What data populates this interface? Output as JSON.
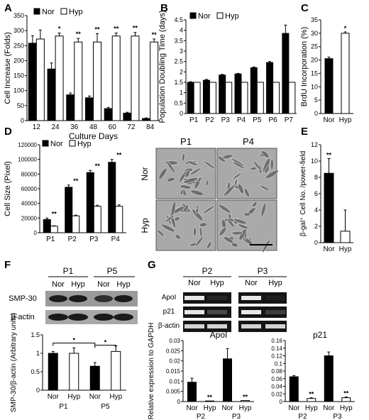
{
  "chart_data": [
    {
      "panel": "A",
      "type": "bar",
      "categories": [
        "12",
        "24",
        "36",
        "48",
        "60",
        "72",
        "84"
      ],
      "series": [
        {
          "name": "Nor",
          "color": "#000000",
          "values": [
            258,
            172,
            86,
            76,
            40,
            25,
            7
          ],
          "errors": [
            25,
            20,
            6,
            6,
            4,
            3,
            2
          ]
        },
        {
          "name": "Hyp",
          "color": "#ffffff",
          "values": [
            272,
            282,
            262,
            262,
            282,
            282,
            262
          ],
          "errors": [
            30,
            10,
            12,
            28,
            10,
            12,
            10
          ]
        }
      ],
      "sig_labels": [
        "",
        "*",
        "**",
        "**",
        "**",
        "**",
        "**"
      ],
      "ylabel": "Cell Increase (Folds)",
      "xlabel": "Culture Days",
      "ylim": [
        0,
        350
      ],
      "yticks": [
        "0",
        "50",
        "100",
        "150",
        "200",
        "250",
        "300",
        "350"
      ],
      "legend": "top-left"
    },
    {
      "panel": "B",
      "type": "bar",
      "categories": [
        "P1",
        "P2",
        "P3",
        "P4",
        "P5",
        "P6",
        "P7"
      ],
      "series": [
        {
          "name": "Nor",
          "color": "#000000",
          "values": [
            1.5,
            1.6,
            1.85,
            1.9,
            2.2,
            2.45,
            3.85
          ],
          "errors": [
            0.03,
            0.04,
            0.03,
            0.03,
            0.04,
            0.05,
            0.4
          ]
        },
        {
          "name": "Hyp",
          "color": "#ffffff",
          "values": [
            1.5,
            1.5,
            1.5,
            1.5,
            1.5,
            1.5,
            1.5
          ],
          "errors": [
            0,
            0,
            0,
            0,
            0,
            0,
            0
          ]
        }
      ],
      "ylabel": "Population Doubling Time (days)",
      "ylim": [
        0,
        4.5
      ],
      "yticks": [
        "0",
        "0.5",
        "1",
        "1.5",
        "2",
        "2.5",
        "3",
        "3.5",
        "4",
        "4.5"
      ],
      "legend": "top-left"
    },
    {
      "panel": "C",
      "type": "bar",
      "categories": [
        "Nor",
        "Hyp"
      ],
      "values": [
        20.5,
        30
      ],
      "colors": [
        "#000000",
        "#ffffff"
      ],
      "errors": [
        0.6,
        0.5
      ],
      "sig_labels": [
        "",
        "*"
      ],
      "ylabel": "BrdU Incorporation (%)",
      "ylim": [
        0,
        35
      ],
      "yticks": [
        "0",
        "5",
        "10",
        "15",
        "20",
        "25",
        "30",
        "35"
      ]
    },
    {
      "panel": "D",
      "type": "bar",
      "categories": [
        "P1",
        "P2",
        "P3",
        "P4"
      ],
      "series": [
        {
          "name": "Nor",
          "color": "#000000",
          "values": [
            18000,
            62000,
            82000,
            96000
          ],
          "errors": [
            2000,
            3000,
            3000,
            4000
          ]
        },
        {
          "name": "Hyp",
          "color": "#ffffff",
          "values": [
            9000,
            23000,
            36000,
            36000
          ],
          "errors": [
            500,
            1000,
            1500,
            2000
          ]
        }
      ],
      "sig_labels": [
        "**",
        "**",
        "**",
        "**"
      ],
      "ylabel": "Cell Size (Pixel)",
      "ylim": [
        0,
        120000
      ],
      "yticks": [
        "0",
        "20000",
        "40000",
        "60000",
        "80000",
        "100000",
        "120000"
      ],
      "legend": "top-left"
    },
    {
      "panel": "E",
      "type": "bar",
      "categories": [
        "Nor",
        "Hyp"
      ],
      "values": [
        8.5,
        1.4
      ],
      "colors": [
        "#000000",
        "#ffffff"
      ],
      "errors": [
        1.8,
        2.6
      ],
      "sig_labels": [
        "**",
        ""
      ],
      "ylabel": "β-gal⁺ Cell No. /power-field",
      "ylim": [
        0,
        12
      ],
      "yticks": [
        "0",
        "2",
        "4",
        "6",
        "8",
        "10",
        "12"
      ]
    },
    {
      "panel": "F",
      "type": "bar",
      "categories": [
        "Nor",
        "Hyp",
        "Nor",
        "Hyp"
      ],
      "groups": [
        "P1",
        "P5"
      ],
      "values": [
        1.0,
        1.0,
        0.65,
        1.05
      ],
      "colors": [
        "#000000",
        "#ffffff",
        "#000000",
        "#ffffff"
      ],
      "errors": [
        0.05,
        0.15,
        0.1,
        0.15
      ],
      "brackets": [
        "*",
        "*"
      ],
      "ylabel": "SMP-30/β-actin (Arbitrary units)",
      "ylim": [
        0,
        1.5
      ],
      "yticks": [
        "0",
        "0.5",
        "1",
        "1.5"
      ]
    },
    {
      "panel": "G-ApoI",
      "type": "bar",
      "title": "ApoI",
      "categories": [
        "Nor",
        "Hyp",
        "Nor",
        "Hyp"
      ],
      "groups": [
        "P2",
        "P3"
      ],
      "values": [
        0.0095,
        0.0003,
        0.021,
        0.0005
      ],
      "colors": [
        "#000000",
        "#ffffff",
        "#000000",
        "#ffffff"
      ],
      "errors": [
        0.002,
        0,
        0.005,
        0
      ],
      "sig_labels": [
        "",
        "**",
        "",
        "**"
      ],
      "ylabel": "Relative expression to GAPDH",
      "ylim": [
        0,
        0.03
      ],
      "yticks": [
        "0",
        "0.005",
        "0.01",
        "0.015",
        "0.02",
        "0.025",
        "0.03"
      ]
    },
    {
      "panel": "G-p21",
      "type": "bar",
      "title": "p21",
      "categories": [
        "Nor",
        "Hyp",
        "Nor",
        "Hyp"
      ],
      "groups": [
        "P2",
        "P3"
      ],
      "values": [
        0.065,
        0.008,
        0.12,
        0.01
      ],
      "colors": [
        "#000000",
        "#ffffff",
        "#000000",
        "#ffffff"
      ],
      "errors": [
        0.003,
        0.002,
        0.01,
        0.002
      ],
      "sig_labels": [
        "",
        "**",
        "",
        "**"
      ],
      "ylim": [
        0,
        0.16
      ],
      "yticks": [
        "0",
        "0.02",
        "0.04",
        "0.06",
        "0.08",
        "0.1",
        "0.12",
        "0.14",
        "0.16"
      ]
    }
  ],
  "panel_letters": {
    "A": "A",
    "B": "B",
    "C": "C",
    "D": "D",
    "E": "E",
    "F": "F",
    "G": "G"
  },
  "micrograph": {
    "cols": [
      "P1",
      "P4"
    ],
    "rows": [
      "Nor",
      "Hyp"
    ]
  },
  "blot_F": {
    "groups": [
      "P1",
      "P5"
    ],
    "lanes": [
      "Nor",
      "Hyp",
      "Nor",
      "Hyp"
    ],
    "rows": [
      "SMP-30",
      "β-actin"
    ]
  },
  "blot_G": {
    "groups": [
      "P2",
      "P3"
    ],
    "lanes": [
      "Nor",
      "Hyp",
      "Nor",
      "Hyp"
    ],
    "rows": [
      "ApoI",
      "p21",
      "β-actin"
    ]
  }
}
